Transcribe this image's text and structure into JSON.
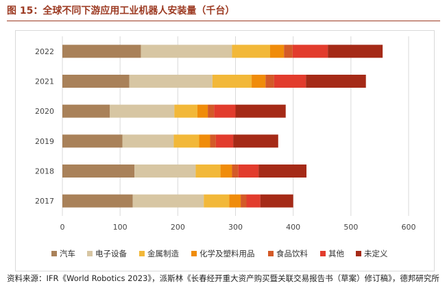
{
  "figure": {
    "title": "图 15：全球不同下游应用工业机器人安装量（千台）",
    "source": "资料来源：IFR《World Robotics 2023》，派斯林《长春经开重大资产购买暨关联交易报告书（草案）修订稿》，德邦研究所"
  },
  "chart_data": {
    "type": "bar",
    "orientation": "horizontal",
    "stacked": true,
    "categories": [
      "2022",
      "2021",
      "2020",
      "2019",
      "2018",
      "2017"
    ],
    "xlim": [
      0,
      600
    ],
    "xticks": [
      0,
      100,
      200,
      300,
      400,
      500,
      600
    ],
    "grid": true,
    "legend_position": "bottom",
    "series": [
      {
        "name": "汽车",
        "color": "#a98159",
        "values": [
          136,
          116,
          82,
          104,
          125,
          122
        ]
      },
      {
        "name": "电子设备",
        "color": "#d7c6a3",
        "values": [
          158,
          144,
          112,
          89,
          106,
          123
        ]
      },
      {
        "name": "金属制造",
        "color": "#f2b839",
        "values": [
          66,
          68,
          40,
          44,
          43,
          44
        ]
      },
      {
        "name": "化学及塑料用品",
        "color": "#f08c0a",
        "values": [
          24,
          24,
          18,
          19,
          20,
          20
        ]
      },
      {
        "name": "食品饮料",
        "color": "#d45a28",
        "values": [
          15,
          15,
          11,
          10,
          11,
          10
        ]
      },
      {
        "name": "其他",
        "color": "#e23c2d",
        "values": [
          61,
          55,
          37,
          30,
          35,
          24
        ]
      },
      {
        "name": "未定义",
        "color": "#a52a17",
        "values": [
          95,
          104,
          87,
          78,
          83,
          57
        ]
      }
    ]
  }
}
